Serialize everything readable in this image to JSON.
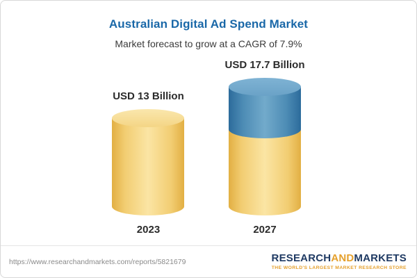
{
  "header": {
    "title": "Australian Digital Ad Spend Market",
    "subtitle": "Market forecast to grow at a CAGR of 7.9%"
  },
  "chart_data": {
    "type": "bar",
    "title": "Australian Digital Ad Spend Market",
    "subtitle": "Market forecast to grow at a CAGR of 7.9%",
    "categories": [
      "2023",
      "2027"
    ],
    "values": [
      13,
      17.7
    ],
    "unit": "USD Billion",
    "value_labels": [
      "USD 13 Billion",
      "USD 17.7 Billion"
    ],
    "cagr_percent": 7.9,
    "ylim": [
      0,
      20
    ],
    "legend": "none",
    "grid": false,
    "colors": {
      "bar_base": "#F3CD6F",
      "bar_growth": "#5B97BE",
      "title": "#1A68A8"
    }
  },
  "footer": {
    "url": "https://www.researchandmarkets.com/reports/5821679",
    "logo": {
      "word1": "RESEARCH",
      "word2": "AND",
      "word3": "MARKETS",
      "tagline": "THE WORLD'S LARGEST MARKET RESEARCH STORE"
    }
  }
}
